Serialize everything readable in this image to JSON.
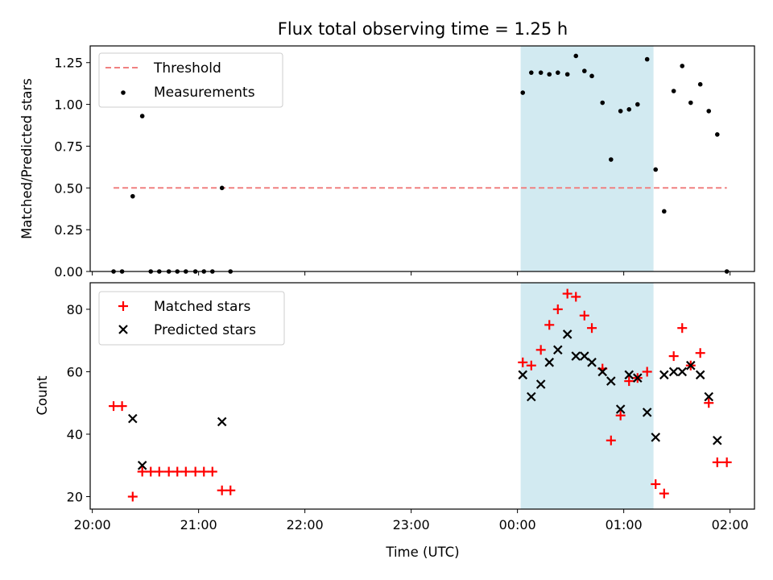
{
  "title": "Flux total observing time = 1.25 h",
  "xlabel": "Time (UTC)",
  "x_ticks": [
    "20:00",
    "21:00",
    "22:00",
    "23:00",
    "00:00",
    "01:00",
    "02:00"
  ],
  "x_tick_hours": [
    20,
    21,
    22,
    23,
    24,
    25,
    26
  ],
  "shaded_interval": [
    24.03,
    25.28
  ],
  "colors": {
    "shade": "#add8e6",
    "threshold": "#f08080",
    "matched": "#ff0000",
    "predicted": "#000000",
    "measurements": "#000000"
  },
  "chart_data": [
    {
      "type": "scatter",
      "ylabel": "Matched/Predicted stars",
      "xlim": [
        19.98,
        26.23
      ],
      "ylim": [
        0.0,
        1.35
      ],
      "y_ticks": [
        "0.00",
        "0.25",
        "0.50",
        "0.75",
        "1.00",
        "1.25"
      ],
      "legend_position": "top-left",
      "series": [
        {
          "name": "Threshold",
          "kind": "line",
          "style": "dashed",
          "x": [
            20.2,
            25.97
          ],
          "y": [
            0.5,
            0.5
          ]
        },
        {
          "name": "Measurements",
          "kind": "points",
          "points": [
            [
              20.2,
              0.0
            ],
            [
              20.28,
              0.0
            ],
            [
              20.38,
              0.45
            ],
            [
              20.47,
              0.93
            ],
            [
              20.55,
              0.0
            ],
            [
              20.63,
              0.0
            ],
            [
              20.72,
              0.0
            ],
            [
              20.8,
              0.0
            ],
            [
              20.88,
              0.0
            ],
            [
              20.97,
              0.0
            ],
            [
              21.05,
              0.0
            ],
            [
              21.13,
              0.0
            ],
            [
              21.22,
              0.5
            ],
            [
              21.3,
              0.0
            ],
            [
              24.05,
              1.07
            ],
            [
              24.13,
              1.19
            ],
            [
              24.22,
              1.19
            ],
            [
              24.3,
              1.18
            ],
            [
              24.38,
              1.19
            ],
            [
              24.47,
              1.18
            ],
            [
              24.55,
              1.29
            ],
            [
              24.63,
              1.2
            ],
            [
              24.7,
              1.17
            ],
            [
              24.8,
              1.01
            ],
            [
              24.88,
              0.67
            ],
            [
              24.97,
              0.96
            ],
            [
              25.05,
              0.97
            ],
            [
              25.13,
              1.0
            ],
            [
              25.22,
              1.27
            ],
            [
              25.3,
              0.61
            ],
            [
              25.38,
              0.36
            ],
            [
              25.47,
              1.08
            ],
            [
              25.55,
              1.23
            ],
            [
              25.63,
              1.01
            ],
            [
              25.72,
              1.12
            ],
            [
              25.8,
              0.96
            ],
            [
              25.88,
              0.82
            ],
            [
              25.97,
              0.0
            ]
          ]
        }
      ]
    },
    {
      "type": "scatter",
      "ylabel": "Count",
      "xlim": [
        19.98,
        26.23
      ],
      "ylim": [
        16.0,
        88.5
      ],
      "y_ticks": [
        "20",
        "40",
        "60",
        "80"
      ],
      "y_tick_values": [
        20,
        40,
        60,
        80
      ],
      "legend_position": "top-left",
      "series": [
        {
          "name": "Matched stars",
          "marker": "plus",
          "points": [
            [
              20.2,
              49
            ],
            [
              20.28,
              49
            ],
            [
              20.38,
              20
            ],
            [
              20.47,
              28
            ],
            [
              20.55,
              28
            ],
            [
              20.63,
              28
            ],
            [
              20.72,
              28
            ],
            [
              20.8,
              28
            ],
            [
              20.88,
              28
            ],
            [
              20.97,
              28
            ],
            [
              21.05,
              28
            ],
            [
              21.13,
              28
            ],
            [
              21.22,
              22
            ],
            [
              21.3,
              22
            ],
            [
              24.05,
              63
            ],
            [
              24.13,
              62
            ],
            [
              24.22,
              67
            ],
            [
              24.3,
              75
            ],
            [
              24.38,
              80
            ],
            [
              24.47,
              85
            ],
            [
              24.55,
              84
            ],
            [
              24.63,
              78
            ],
            [
              24.7,
              74
            ],
            [
              24.8,
              61
            ],
            [
              24.88,
              38
            ],
            [
              24.97,
              46
            ],
            [
              25.05,
              57
            ],
            [
              25.13,
              58
            ],
            [
              25.22,
              60
            ],
            [
              25.3,
              24
            ],
            [
              25.38,
              21
            ],
            [
              25.47,
              65
            ],
            [
              25.55,
              74
            ],
            [
              25.63,
              62
            ],
            [
              25.72,
              66
            ],
            [
              25.8,
              50
            ],
            [
              25.88,
              31
            ],
            [
              25.97,
              31
            ]
          ]
        },
        {
          "name": "Predicted stars",
          "marker": "x",
          "points": [
            [
              20.38,
              45
            ],
            [
              20.47,
              30
            ],
            [
              21.22,
              44
            ],
            [
              24.05,
              59
            ],
            [
              24.13,
              52
            ],
            [
              24.22,
              56
            ],
            [
              24.3,
              63
            ],
            [
              24.38,
              67
            ],
            [
              24.47,
              72
            ],
            [
              24.55,
              65
            ],
            [
              24.63,
              65
            ],
            [
              24.7,
              63
            ],
            [
              24.8,
              60
            ],
            [
              24.88,
              57
            ],
            [
              24.97,
              48
            ],
            [
              25.05,
              59
            ],
            [
              25.13,
              58
            ],
            [
              25.22,
              47
            ],
            [
              25.3,
              39
            ],
            [
              25.38,
              59
            ],
            [
              25.47,
              60
            ],
            [
              25.55,
              60
            ],
            [
              25.63,
              62
            ],
            [
              25.72,
              59
            ],
            [
              25.8,
              52
            ],
            [
              25.88,
              38
            ]
          ]
        }
      ]
    }
  ]
}
